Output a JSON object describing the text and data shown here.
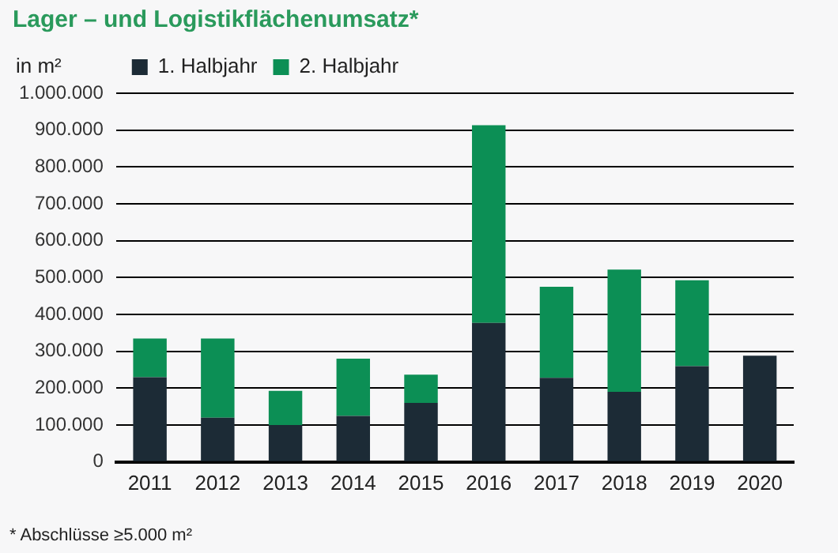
{
  "chart_data": {
    "type": "bar",
    "title": "Lager – und Logistikflächenumsatz*",
    "ylabel": "in m²",
    "annotations": [
      "* Abschlüsse ≥5.000 m²"
    ],
    "categories": [
      "2011",
      "2012",
      "2013",
      "2014",
      "2015",
      "2016",
      "2017",
      "2018",
      "2019",
      "2020"
    ],
    "series": [
      {
        "name": "1. Halbjahr",
        "color": "#1c2b36",
        "values": [
          230000,
          120000,
          100000,
          125000,
          160000,
          377000,
          228000,
          190000,
          260000,
          288000
        ]
      },
      {
        "name": "2. Halbjahr",
        "color": "#0c8f55",
        "values": [
          105000,
          215000,
          93000,
          155000,
          77000,
          536000,
          247000,
          332000,
          233000,
          null
        ]
      }
    ],
    "stacked": true,
    "ylim": [
      0,
      1000000
    ],
    "yticks": [
      {
        "value": 0,
        "label": "0"
      },
      {
        "value": 100000,
        "label": "100.000"
      },
      {
        "value": 200000,
        "label": "200.000"
      },
      {
        "value": 300000,
        "label": "300.000"
      },
      {
        "value": 400000,
        "label": "400.000"
      },
      {
        "value": 500000,
        "label": "500.000"
      },
      {
        "value": 600000,
        "label": "600.000"
      },
      {
        "value": 700000,
        "label": "700.000"
      },
      {
        "value": 800000,
        "label": "800.000"
      },
      {
        "value": 900000,
        "label": "900.000"
      },
      {
        "value": 1000000,
        "label": "1.000.000"
      }
    ],
    "grid": "y",
    "legend": "top left"
  }
}
